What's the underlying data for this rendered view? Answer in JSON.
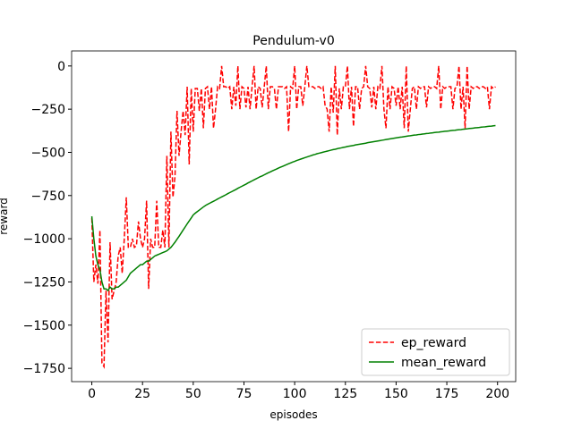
{
  "chart_data": {
    "type": "line",
    "title": "Pendulum-v0",
    "x_label": "episodes",
    "y_label": "reward",
    "xlim": [
      -9.95,
      208.95
    ],
    "ylim": [
      -1827,
      87
    ],
    "xticks": [
      0,
      25,
      50,
      75,
      100,
      125,
      150,
      175,
      200
    ],
    "yticks": [
      {
        "value": -1750,
        "label": "−1750"
      },
      {
        "value": -1500,
        "label": "−1500"
      },
      {
        "value": -1250,
        "label": "−1250"
      },
      {
        "value": -1000,
        "label": "−1000"
      },
      {
        "value": -750,
        "label": "−750"
      },
      {
        "value": -500,
        "label": "−500"
      },
      {
        "value": -250,
        "label": "−250"
      },
      0
    ],
    "legend_position": "lower right",
    "grid": false,
    "x": [
      0,
      1,
      2,
      3,
      4,
      5,
      6,
      7,
      8,
      9,
      10,
      11,
      12,
      13,
      14,
      15,
      16,
      17,
      18,
      19,
      20,
      21,
      22,
      23,
      24,
      25,
      26,
      27,
      28,
      29,
      30,
      31,
      32,
      33,
      34,
      35,
      36,
      37,
      38,
      39,
      40,
      41,
      42,
      43,
      44,
      45,
      46,
      47,
      48,
      49,
      50,
      51,
      52,
      53,
      54,
      55,
      56,
      57,
      58,
      59,
      60,
      61,
      62,
      63,
      64,
      65,
      66,
      67,
      68,
      69,
      70,
      71,
      72,
      73,
      74,
      75,
      76,
      77,
      78,
      79,
      80,
      81,
      82,
      83,
      84,
      85,
      86,
      87,
      88,
      89,
      90,
      91,
      92,
      93,
      94,
      95,
      96,
      97,
      98,
      99,
      100,
      101,
      102,
      103,
      104,
      105,
      106,
      107,
      108,
      109,
      110,
      111,
      112,
      113,
      114,
      115,
      116,
      117,
      118,
      119,
      120,
      121,
      122,
      123,
      124,
      125,
      126,
      127,
      128,
      129,
      130,
      131,
      132,
      133,
      134,
      135,
      136,
      137,
      138,
      139,
      140,
      141,
      142,
      143,
      144,
      145,
      146,
      147,
      148,
      149,
      150,
      151,
      152,
      153,
      154,
      155,
      156,
      157,
      158,
      159,
      160,
      161,
      162,
      163,
      164,
      165,
      166,
      167,
      168,
      169,
      170,
      171,
      172,
      173,
      174,
      175,
      176,
      177,
      178,
      179,
      180,
      181,
      182,
      183,
      184,
      185,
      186,
      187,
      188,
      189,
      190,
      191,
      192,
      193,
      194,
      195,
      196,
      197,
      198,
      199
    ],
    "series": [
      {
        "name": "ep_reward",
        "color": "#ff0000",
        "linestyle": "dashed",
        "values": [
          -880,
          -1250,
          -1150,
          -1260,
          -950,
          -1720,
          -1740,
          -1300,
          -1600,
          -1020,
          -1350,
          -1300,
          -1250,
          -1100,
          -1050,
          -1200,
          -1000,
          -760,
          -1050,
          -1050,
          -1000,
          -1050,
          -1040,
          -900,
          -1000,
          -1050,
          -1000,
          -780,
          -1290,
          -1000,
          -1050,
          -1050,
          -780,
          -1050,
          -1050,
          -950,
          -1050,
          -520,
          -1050,
          -380,
          -760,
          -640,
          -260,
          -520,
          -380,
          -260,
          -400,
          -120,
          -570,
          -130,
          -380,
          -130,
          -130,
          -260,
          -130,
          -360,
          -130,
          -120,
          -250,
          -120,
          -360,
          -250,
          -120,
          -130,
          0,
          -120,
          -120,
          -130,
          -120,
          -250,
          -120,
          -230,
          0,
          -250,
          -120,
          -130,
          -240,
          -120,
          -250,
          -120,
          0,
          -250,
          -120,
          -130,
          -240,
          -120,
          0,
          -250,
          -120,
          -120,
          -130,
          -250,
          -120,
          -120,
          -120,
          -130,
          -120,
          -380,
          -120,
          -130,
          0,
          -250,
          -120,
          -120,
          -230,
          -120,
          0,
          -120,
          -120,
          -120,
          -130,
          -120,
          -120,
          -130,
          -120,
          -230,
          -250,
          -380,
          -120,
          -270,
          0,
          -400,
          -130,
          -250,
          -120,
          -120,
          0,
          -250,
          -120,
          -350,
          -120,
          -120,
          -250,
          -130,
          -120,
          0,
          -120,
          -130,
          -240,
          -120,
          -250,
          -120,
          -130,
          0,
          -250,
          -360,
          -120,
          -250,
          -120,
          -130,
          -230,
          -120,
          -250,
          -120,
          -360,
          0,
          -380,
          -250,
          -130,
          -120,
          -250,
          -120,
          -130,
          -120,
          -120,
          -240,
          -120,
          -130,
          -120,
          -120,
          -130,
          0,
          -250,
          -120,
          -130,
          -120,
          -120,
          -120,
          -250,
          -130,
          -120,
          0,
          -250,
          -120,
          -360,
          0,
          -250,
          -120,
          -130,
          -120,
          -120,
          -130,
          -120,
          -120,
          -130,
          -120,
          -250,
          -120,
          -130,
          -120
        ]
      },
      {
        "name": "mean_reward",
        "color": "#008000",
        "linestyle": "solid",
        "values": [
          -870,
          -1000,
          -1100,
          -1150,
          -1180,
          -1250,
          -1290,
          -1290,
          -1300,
          -1280,
          -1290,
          -1290,
          -1280,
          -1280,
          -1270,
          -1260,
          -1250,
          -1240,
          -1220,
          -1200,
          -1190,
          -1180,
          -1170,
          -1160,
          -1150,
          -1150,
          -1140,
          -1130,
          -1130,
          -1120,
          -1110,
          -1100,
          -1095,
          -1090,
          -1085,
          -1080,
          -1075,
          -1070,
          -1060,
          -1050,
          -1035,
          -1020,
          -1003,
          -986,
          -968,
          -950,
          -932,
          -914,
          -897,
          -880,
          -862,
          -852,
          -843,
          -834,
          -825,
          -816,
          -808,
          -801,
          -795,
          -789,
          -783,
          -777,
          -770,
          -764,
          -758,
          -752,
          -746,
          -739,
          -733,
          -727,
          -721,
          -715,
          -708,
          -702,
          -696,
          -690,
          -684,
          -677,
          -671,
          -665,
          -659,
          -653,
          -647,
          -641,
          -636,
          -630,
          -624,
          -618,
          -613,
          -607,
          -602,
          -597,
          -591,
          -586,
          -581,
          -576,
          -571,
          -566,
          -561,
          -556,
          -552,
          -547,
          -543,
          -539,
          -535,
          -531,
          -527,
          -523,
          -519,
          -515,
          -512,
          -508,
          -505,
          -502,
          -499,
          -496,
          -493,
          -490,
          -487,
          -484,
          -482,
          -479,
          -476,
          -474,
          -471,
          -469,
          -466,
          -464,
          -462,
          -460,
          -457,
          -455,
          -453,
          -451,
          -449,
          -447,
          -444,
          -442,
          -440,
          -438,
          -436,
          -434,
          -432,
          -430,
          -428,
          -426,
          -424,
          -422,
          -420,
          -418,
          -416,
          -414,
          -412,
          -411,
          -409,
          -407,
          -405,
          -404,
          -402,
          -400,
          -399,
          -397,
          -396,
          -394,
          -393,
          -391,
          -390,
          -388,
          -387,
          -385,
          -384,
          -383,
          -381,
          -380,
          -378,
          -377,
          -376,
          -374,
          -373,
          -372,
          -370,
          -369,
          -368,
          -366,
          -365,
          -364,
          -362,
          -361,
          -360,
          -358,
          -357,
          -356,
          -354,
          -353,
          -352,
          -350,
          -349,
          -348,
          -346,
          -345
        ]
      }
    ]
  }
}
